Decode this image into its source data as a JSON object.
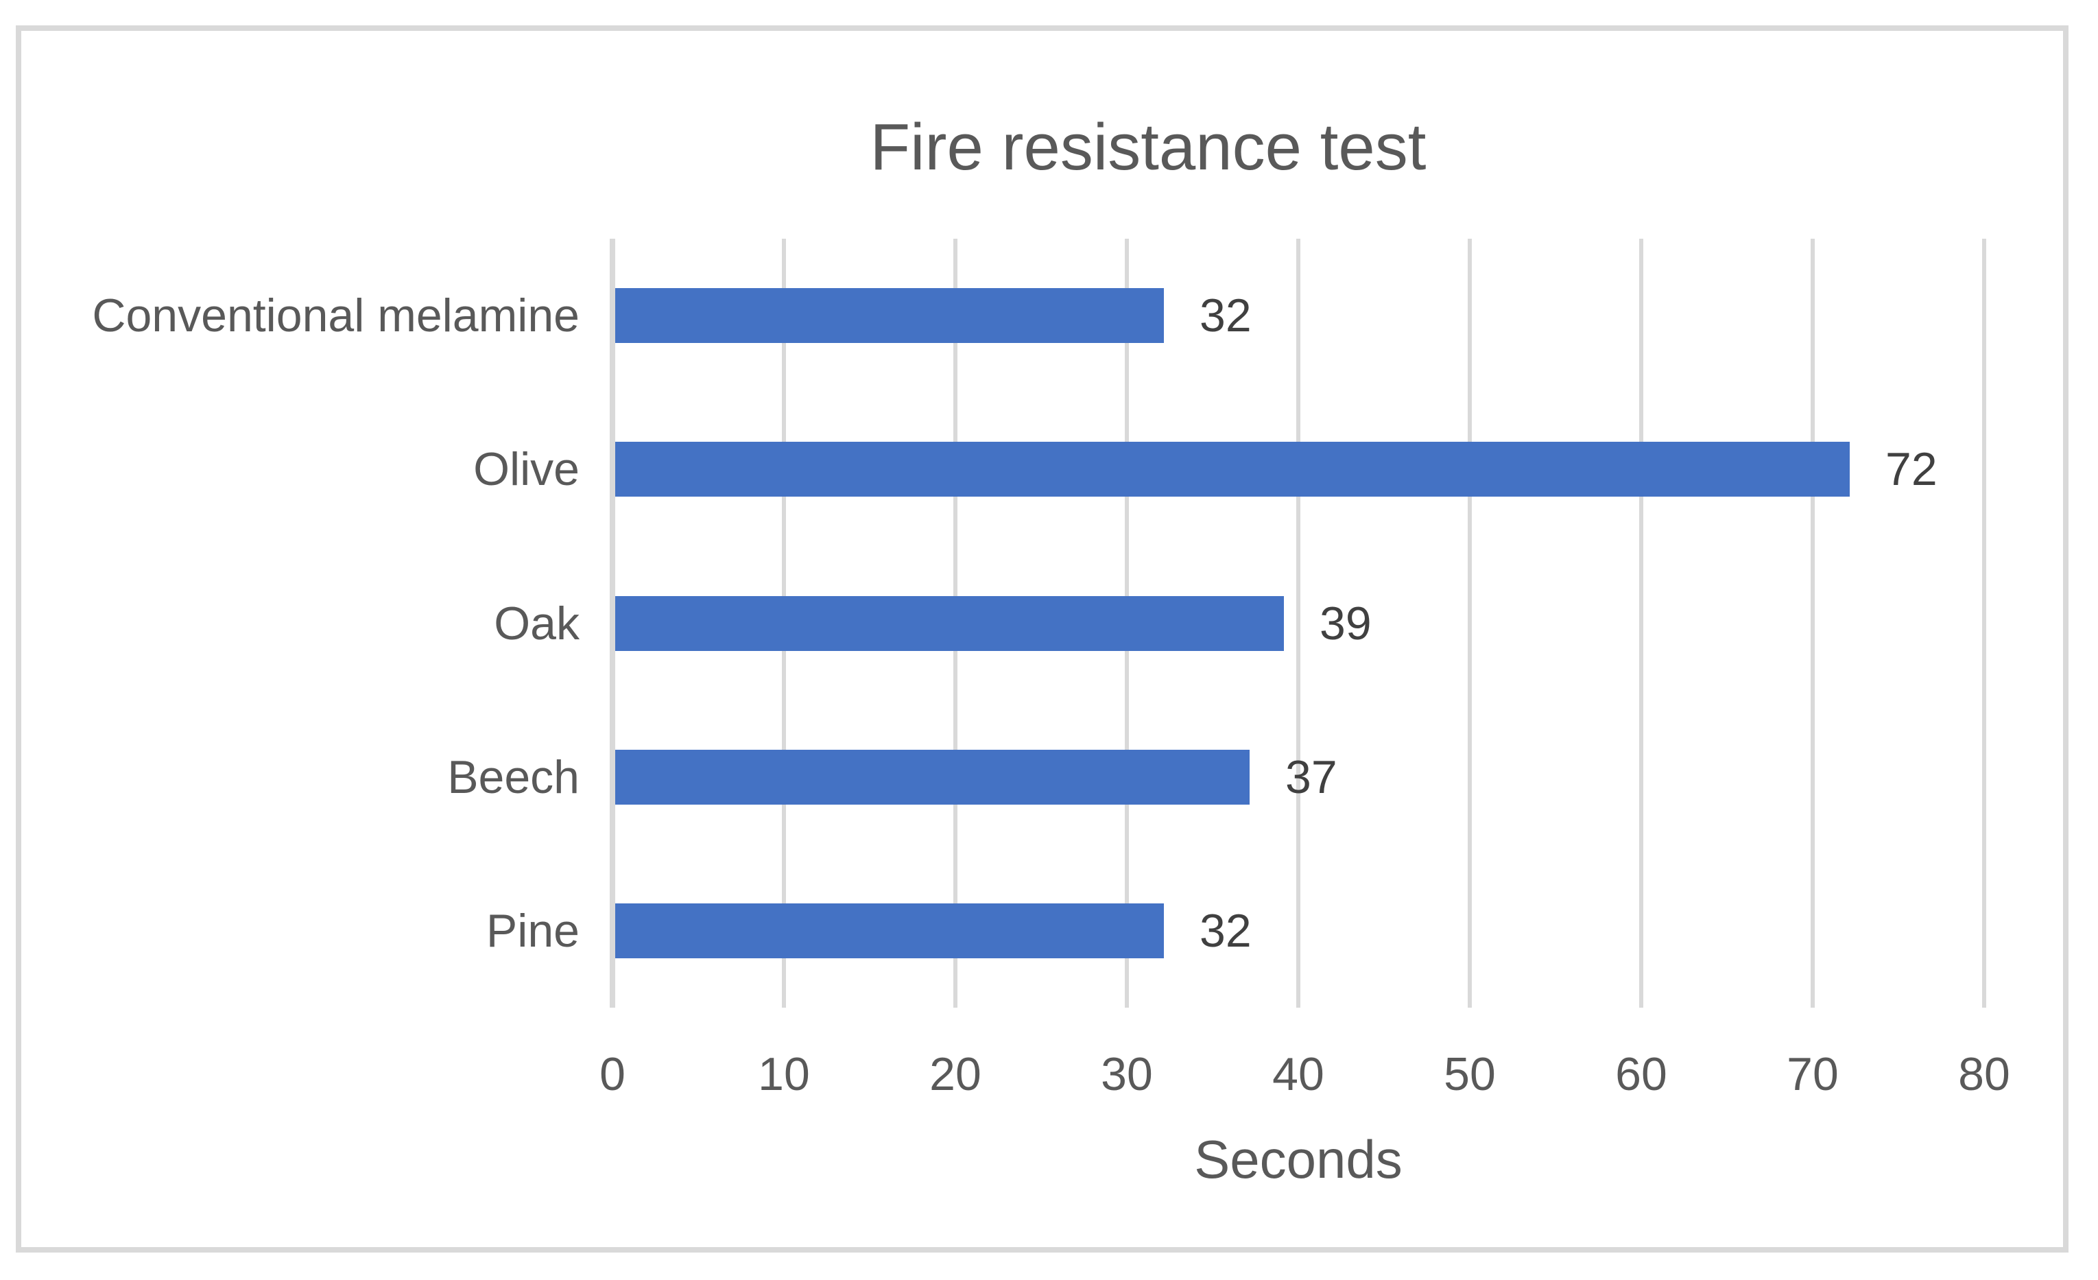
{
  "chart_data": {
    "type": "bar",
    "orientation": "horizontal",
    "title": "Fire resistance test",
    "categories": [
      "Conventional melamine",
      "Olive",
      "Oak",
      "Beech",
      "Pine"
    ],
    "values": [
      32,
      72,
      39,
      37,
      32
    ],
    "data_labels": [
      "32",
      "72",
      "39",
      "37",
      "32"
    ],
    "xlabel": "Seconds",
    "ylabel": "",
    "xlim": [
      0,
      80
    ],
    "x_ticks": [
      0,
      10,
      20,
      30,
      40,
      50,
      60,
      70,
      80
    ],
    "grid": "vertical-gridlines-on",
    "legend": "none",
    "colors": {
      "bar": "#4472C4",
      "gridline": "#D9D9D9",
      "frame_border": "#D9D9D9",
      "title_text": "#595959",
      "axis_text": "#595959",
      "data_label_text": "#404040",
      "background": "#FFFFFF"
    }
  }
}
